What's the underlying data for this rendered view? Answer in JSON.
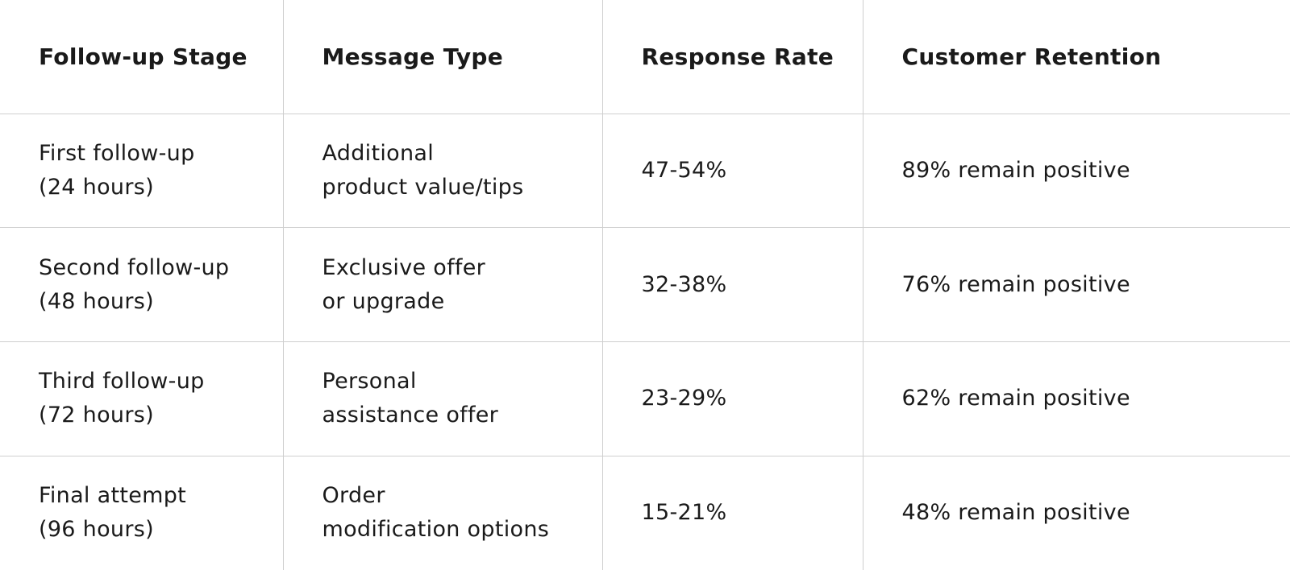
{
  "table": {
    "headers": [
      "Follow-up Stage",
      "Message Type",
      "Response Rate",
      "Customer Retention"
    ],
    "rows": [
      {
        "stage": [
          "First follow-up",
          "(24 hours)"
        ],
        "message": [
          "Additional",
          "product value/tips"
        ],
        "response": "47-54%",
        "retention": "89% remain positive"
      },
      {
        "stage": [
          "Second follow-up",
          "(48 hours)"
        ],
        "message": [
          "Exclusive offer",
          "or upgrade"
        ],
        "response": "32-38%",
        "retention": "76% remain positive"
      },
      {
        "stage": [
          "Third follow-up",
          "(72 hours)"
        ],
        "message": [
          "Personal",
          "assistance offer"
        ],
        "response": "23-29%",
        "retention": "62% remain positive"
      },
      {
        "stage": [
          "Final attempt",
          "(96 hours)"
        ],
        "message": [
          "Order",
          "modification options"
        ],
        "response": "15-21%",
        "retention": "48% remain positive"
      }
    ]
  }
}
